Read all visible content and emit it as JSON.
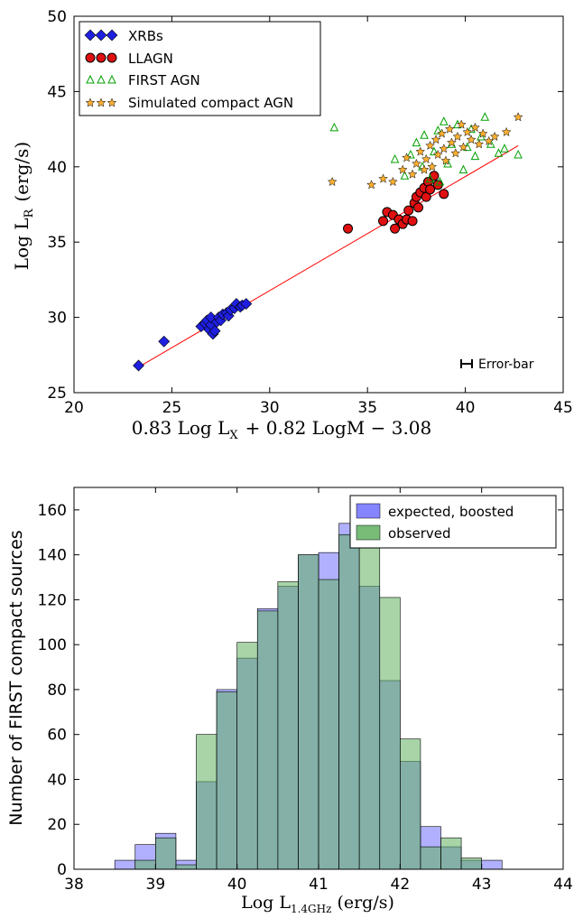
{
  "chart_data": [
    {
      "type": "scatter",
      "ylabel": "Log L",
      "ylabel_sub": "R",
      "ylabel_unit": "(erg/s)",
      "xlabel_parts": [
        "0.83 Log L",
        "X",
        "+ 0.82 LogM − 3.08"
      ],
      "xlim": [
        20,
        45
      ],
      "ylim": [
        25,
        50
      ],
      "xticks": [
        "20",
        "25",
        "30",
        "35",
        "40",
        "45"
      ],
      "yticks": [
        "25",
        "30",
        "35",
        "40",
        "45",
        "50"
      ],
      "legend_position": "top-left",
      "annotation": "Error-bar",
      "colors": {
        "xrbs": "#1f1fe0",
        "llagn": "#e01010",
        "first": "#00a000",
        "sim": "#ffb030",
        "fit": "#ff0000"
      },
      "fit_line": {
        "x": [
          23.3,
          42.7
        ],
        "y": [
          26.7,
          41.4
        ]
      },
      "series": [
        {
          "name": "XRBs",
          "marker": "diamond",
          "points": [
            [
              23.3,
              26.8
            ],
            [
              24.6,
              28.4
            ],
            [
              26.5,
              29.4
            ],
            [
              26.7,
              29.6
            ],
            [
              26.8,
              29.8
            ],
            [
              26.9,
              29.2
            ],
            [
              27.0,
              29.5
            ],
            [
              27.0,
              30.0
            ],
            [
              27.1,
              28.9
            ],
            [
              27.2,
              29.1
            ],
            [
              27.3,
              29.7
            ],
            [
              27.4,
              30.0
            ],
            [
              27.5,
              29.8
            ],
            [
              27.6,
              30.2
            ],
            [
              27.8,
              30.3
            ],
            [
              27.9,
              30.1
            ],
            [
              28.0,
              30.5
            ],
            [
              28.2,
              30.6
            ],
            [
              28.3,
              30.9
            ],
            [
              28.5,
              30.7
            ],
            [
              28.6,
              30.8
            ],
            [
              28.8,
              30.9
            ]
          ]
        },
        {
          "name": "LLAGN",
          "marker": "circle",
          "points": [
            [
              34.0,
              35.9
            ],
            [
              35.8,
              36.4
            ],
            [
              36.0,
              37.0
            ],
            [
              36.3,
              36.8
            ],
            [
              36.4,
              35.9
            ],
            [
              36.6,
              36.5
            ],
            [
              36.8,
              36.2
            ],
            [
              37.0,
              36.5
            ],
            [
              37.1,
              37.1
            ],
            [
              37.3,
              36.4
            ],
            [
              37.4,
              37.6
            ],
            [
              37.5,
              38.0
            ],
            [
              37.6,
              37.3
            ],
            [
              37.7,
              38.3
            ],
            [
              37.9,
              38.6
            ],
            [
              38.0,
              38.0
            ],
            [
              38.1,
              39.0
            ],
            [
              38.2,
              38.5
            ],
            [
              38.4,
              39.4
            ],
            [
              38.6,
              38.8
            ],
            [
              38.9,
              38.2
            ]
          ]
        },
        {
          "name": "FIRST AGN",
          "marker": "triangle",
          "points": [
            [
              33.3,
              42.6
            ],
            [
              36.4,
              40.5
            ],
            [
              37.2,
              40.8
            ],
            [
              37.5,
              41.6
            ],
            [
              37.9,
              42.1
            ],
            [
              38.2,
              39.2
            ],
            [
              38.4,
              41.0
            ],
            [
              38.6,
              42.4
            ],
            [
              38.9,
              43.0
            ],
            [
              39.1,
              40.2
            ],
            [
              39.3,
              41.5
            ],
            [
              39.6,
              42.8
            ],
            [
              39.9,
              39.8
            ],
            [
              40.1,
              41.3
            ],
            [
              40.3,
              42.5
            ],
            [
              40.5,
              40.7
            ],
            [
              40.8,
              42.0
            ],
            [
              41.0,
              43.3
            ],
            [
              41.3,
              41.5
            ],
            [
              41.7,
              40.9
            ],
            [
              42.0,
              41.2
            ],
            [
              42.7,
              40.8
            ],
            [
              36.9,
              39.4
            ],
            [
              37.8,
              40.0
            ],
            [
              38.7,
              39.0
            ]
          ]
        },
        {
          "name": "Simulated compact AGN",
          "marker": "star",
          "points": [
            [
              33.2,
              39.0
            ],
            [
              35.2,
              38.8
            ],
            [
              35.8,
              39.2
            ],
            [
              36.3,
              39.0
            ],
            [
              36.8,
              39.8
            ],
            [
              37.0,
              40.6
            ],
            [
              37.3,
              39.5
            ],
            [
              37.5,
              40.2
            ],
            [
              37.7,
              41.0
            ],
            [
              37.9,
              39.8
            ],
            [
              38.0,
              40.5
            ],
            [
              38.2,
              41.4
            ],
            [
              38.3,
              40.0
            ],
            [
              38.5,
              41.8
            ],
            [
              38.6,
              40.8
            ],
            [
              38.8,
              42.2
            ],
            [
              38.9,
              41.2
            ],
            [
              39.0,
              40.4
            ],
            [
              39.2,
              42.5
            ],
            [
              39.3,
              41.6
            ],
            [
              39.5,
              40.9
            ],
            [
              39.6,
              42.0
            ],
            [
              39.8,
              42.8
            ],
            [
              39.9,
              41.3
            ],
            [
              40.1,
              42.3
            ],
            [
              40.3,
              41.8
            ],
            [
              40.5,
              42.6
            ],
            [
              40.7,
              41.5
            ],
            [
              40.9,
              42.2
            ],
            [
              41.2,
              41.7
            ],
            [
              41.5,
              42.0
            ],
            [
              42.1,
              42.3
            ],
            [
              42.7,
              43.3
            ]
          ]
        }
      ]
    },
    {
      "type": "bar",
      "ylabel": "Number of FIRST compact sources",
      "xlabel_parts": [
        "Log L",
        "1.4GHz",
        "(erg/s)"
      ],
      "xlim": [
        38,
        44
      ],
      "ylim": [
        0,
        170
      ],
      "xticks": [
        "38",
        "39",
        "40",
        "41",
        "42",
        "43",
        "44"
      ],
      "yticks": [
        "0",
        "20",
        "40",
        "60",
        "80",
        "100",
        "120",
        "140",
        "160"
      ],
      "legend_position": "top-right",
      "bin_edges": [
        38.5,
        38.75,
        39.0,
        39.25,
        39.5,
        39.75,
        40.0,
        40.25,
        40.5,
        40.75,
        41.0,
        41.25,
        41.5,
        41.75,
        42.0,
        42.25,
        42.5,
        42.75,
        43.0,
        43.25
      ],
      "colors": {
        "expected": "#7070ff",
        "observed": "#60b060",
        "overlap": "#2b6a6f"
      },
      "series": [
        {
          "name": "expected, boosted",
          "values": [
            4,
            11,
            16,
            4,
            39,
            80,
            94,
            116,
            126,
            140,
            141,
            154,
            126,
            84,
            48,
            19,
            10,
            4,
            4
          ]
        },
        {
          "name": "observed",
          "values": [
            0,
            4,
            14,
            2,
            60,
            79,
            101,
            115,
            128,
            140,
            129,
            149,
            150,
            121,
            58,
            10,
            14,
            5,
            0
          ]
        }
      ]
    }
  ]
}
